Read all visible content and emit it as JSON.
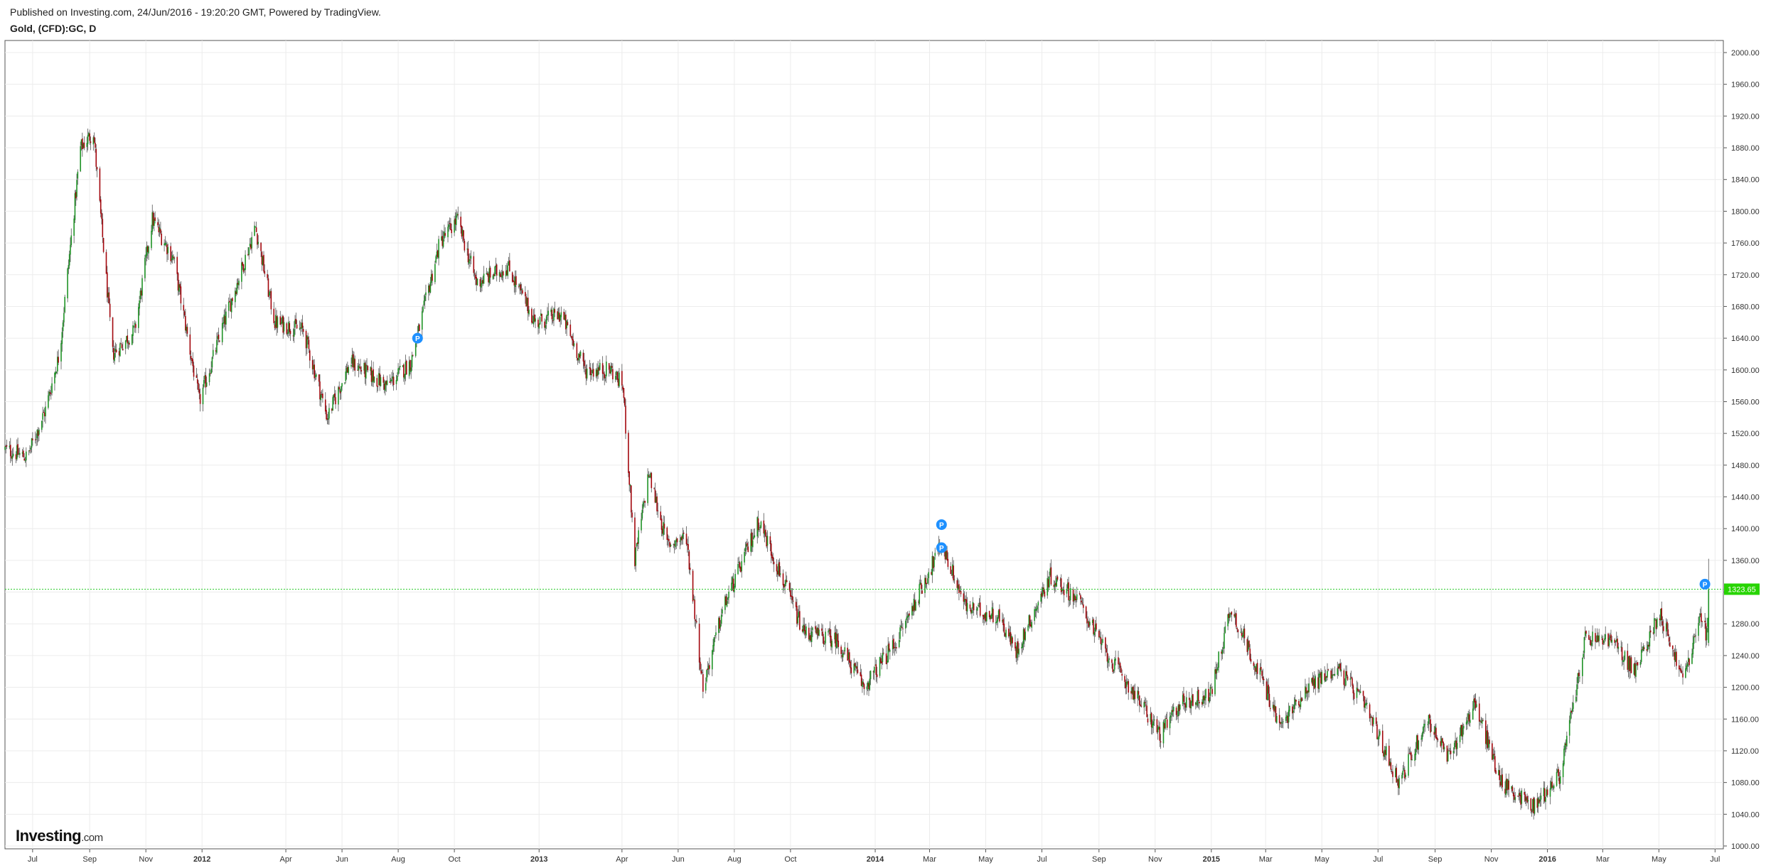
{
  "header": {
    "published": "Published on Investing.com, 24/Jun/2016 - 19:20:20 GMT, Powered by TradingView.",
    "symbol": "Gold, (CFD):GC, D"
  },
  "brand": {
    "name": "Investing",
    "suffix": ".com"
  },
  "chart_data": {
    "type": "candlestick",
    "title": "Gold, (CFD):GC, D",
    "ylim": [
      1000,
      2000
    ],
    "y_ticks": [
      "2000.00",
      "1960.00",
      "1920.00",
      "1880.00",
      "1840.00",
      "1800.00",
      "1760.00",
      "1720.00",
      "1680.00",
      "1640.00",
      "1600.00",
      "1560.00",
      "1520.00",
      "1480.00",
      "1440.00",
      "1400.00",
      "1360.00",
      "1320.00",
      "1280.00",
      "1240.00",
      "1200.00",
      "1160.00",
      "1120.00",
      "1080.00",
      "1040.00",
      "1000.00"
    ],
    "x_ticks": [
      {
        "label": "Jul",
        "date": "2011-07-01",
        "bold": false
      },
      {
        "label": "Sep",
        "date": "2011-09-01",
        "bold": false
      },
      {
        "label": "Nov",
        "date": "2011-11-01",
        "bold": false
      },
      {
        "label": "2012",
        "date": "2012-01-01",
        "bold": true
      },
      {
        "label": "Apr",
        "date": "2012-04-01",
        "bold": false
      },
      {
        "label": "Jun",
        "date": "2012-06-01",
        "bold": false
      },
      {
        "label": "Aug",
        "date": "2012-08-01",
        "bold": false
      },
      {
        "label": "Oct",
        "date": "2012-10-01",
        "bold": false
      },
      {
        "label": "2013",
        "date": "2013-01-01",
        "bold": true
      },
      {
        "label": "Apr",
        "date": "2013-04-01",
        "bold": false
      },
      {
        "label": "Jun",
        "date": "2013-06-01",
        "bold": false
      },
      {
        "label": "Aug",
        "date": "2013-08-01",
        "bold": false
      },
      {
        "label": "Oct",
        "date": "2013-10-01",
        "bold": false
      },
      {
        "label": "2014",
        "date": "2014-01-01",
        "bold": true
      },
      {
        "label": "Mar",
        "date": "2014-03-01",
        "bold": false
      },
      {
        "label": "May",
        "date": "2014-05-01",
        "bold": false
      },
      {
        "label": "Jul",
        "date": "2014-07-01",
        "bold": false
      },
      {
        "label": "Sep",
        "date": "2014-09-01",
        "bold": false
      },
      {
        "label": "Nov",
        "date": "2014-11-01",
        "bold": false
      },
      {
        "label": "2015",
        "date": "2015-01-01",
        "bold": true
      },
      {
        "label": "Mar",
        "date": "2015-03-01",
        "bold": false
      },
      {
        "label": "May",
        "date": "2015-05-01",
        "bold": false
      },
      {
        "label": "Jul",
        "date": "2015-07-01",
        "bold": false
      },
      {
        "label": "Sep",
        "date": "2015-09-01",
        "bold": false
      },
      {
        "label": "Nov",
        "date": "2015-11-01",
        "bold": false
      },
      {
        "label": "2016",
        "date": "2016-01-01",
        "bold": true
      },
      {
        "label": "Mar",
        "date": "2016-03-01",
        "bold": false
      },
      {
        "label": "May",
        "date": "2016-05-01",
        "bold": false
      },
      {
        "label": "Jul",
        "date": "2016-07-01",
        "bold": false
      }
    ],
    "x_range": [
      "2011-06-01",
      "2016-07-10"
    ],
    "last_price": "1323.65",
    "last_price_value": 1323.65,
    "price_path": [
      [
        "2011-06-01",
        1500
      ],
      [
        "2011-06-25",
        1490
      ],
      [
        "2011-07-15",
        1550
      ],
      [
        "2011-07-30",
        1620
      ],
      [
        "2011-08-22",
        1880
      ],
      [
        "2011-09-05",
        1900
      ],
      [
        "2011-09-26",
        1620
      ],
      [
        "2011-10-20",
        1650
      ],
      [
        "2011-11-08",
        1790
      ],
      [
        "2011-12-01",
        1740
      ],
      [
        "2011-12-29",
        1560
      ],
      [
        "2012-01-25",
        1660
      ],
      [
        "2012-02-28",
        1780
      ],
      [
        "2012-03-20",
        1660
      ],
      [
        "2012-04-20",
        1650
      ],
      [
        "2012-05-16",
        1540
      ],
      [
        "2012-06-10",
        1610
      ],
      [
        "2012-07-20",
        1580
      ],
      [
        "2012-08-15",
        1610
      ],
      [
        "2012-09-15",
        1760
      ],
      [
        "2012-10-04",
        1790
      ],
      [
        "2012-10-25",
        1710
      ],
      [
        "2012-11-28",
        1730
      ],
      [
        "2012-12-28",
        1660
      ],
      [
        "2013-01-25",
        1670
      ],
      [
        "2013-02-20",
        1600
      ],
      [
        "2013-03-20",
        1600
      ],
      [
        "2013-04-02",
        1580
      ],
      [
        "2013-04-15",
        1360
      ],
      [
        "2013-04-30",
        1470
      ],
      [
        "2013-05-20",
        1380
      ],
      [
        "2013-06-10",
        1390
      ],
      [
        "2013-06-28",
        1200
      ],
      [
        "2013-07-20",
        1300
      ],
      [
        "2013-08-28",
        1410
      ],
      [
        "2013-10-15",
        1270
      ],
      [
        "2013-11-20",
        1260
      ],
      [
        "2013-12-20",
        1200
      ],
      [
        "2014-01-25",
        1260
      ],
      [
        "2014-03-14",
        1380
      ],
      [
        "2014-04-10",
        1300
      ],
      [
        "2014-05-15",
        1290
      ],
      [
        "2014-06-03",
        1245
      ],
      [
        "2014-07-10",
        1340
      ],
      [
        "2014-08-10",
        1310
      ],
      [
        "2014-09-10",
        1240
      ],
      [
        "2014-10-05",
        1200
      ],
      [
        "2014-11-07",
        1140
      ],
      [
        "2014-11-28",
        1180
      ],
      [
        "2014-12-31",
        1190
      ],
      [
        "2015-01-22",
        1300
      ],
      [
        "2015-02-25",
        1210
      ],
      [
        "2015-03-17",
        1150
      ],
      [
        "2015-04-15",
        1200
      ],
      [
        "2015-05-18",
        1225
      ],
      [
        "2015-06-15",
        1180
      ],
      [
        "2015-07-24",
        1080
      ],
      [
        "2015-08-24",
        1160
      ],
      [
        "2015-09-15",
        1110
      ],
      [
        "2015-10-14",
        1180
      ],
      [
        "2015-11-12",
        1080
      ],
      [
        "2015-12-17",
        1050
      ],
      [
        "2016-01-15",
        1090
      ],
      [
        "2016-02-11",
        1260
      ],
      [
        "2016-03-10",
        1260
      ],
      [
        "2016-04-05",
        1220
      ],
      [
        "2016-05-02",
        1295
      ],
      [
        "2016-05-27",
        1210
      ],
      [
        "2016-06-16",
        1290
      ],
      [
        "2016-06-22",
        1265
      ],
      [
        "2016-06-24",
        1323.65
      ]
    ],
    "events": [
      {
        "date": "2012-08-22",
        "price": 1640,
        "label": "P"
      },
      {
        "date": "2014-03-14",
        "price": 1405,
        "label": "P"
      },
      {
        "date": "2014-03-14",
        "price": 1376,
        "label": "P"
      },
      {
        "date": "2016-06-20",
        "price": 1330,
        "label": "P"
      }
    ],
    "colors": {
      "up": "#1f9326",
      "down": "#a3070d",
      "grid": "#ececec",
      "last_line": "#2ecc2e",
      "last_label_bg": "#27d400",
      "marker": "#1e90ff"
    },
    "grid": true
  }
}
